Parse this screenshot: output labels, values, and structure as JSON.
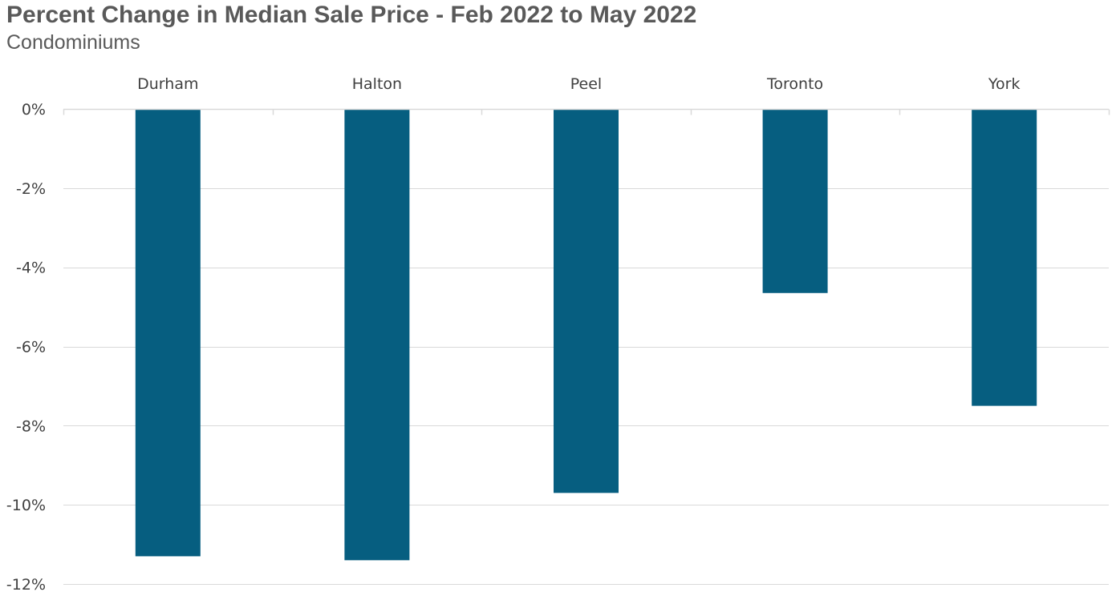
{
  "chart_data": {
    "type": "bar",
    "title": "Percent Change in Median Sale Price - Feb 2022 to May 2022",
    "subtitle": "Condominiums",
    "categories": [
      "Durham",
      "Halton",
      "Peel",
      "Toronto",
      "York"
    ],
    "values": [
      -11.3,
      -11.4,
      -9.7,
      -4.65,
      -7.5
    ],
    "ylim": [
      -12,
      0
    ],
    "yticks": [
      0,
      -2,
      -4,
      -6,
      -8,
      -10,
      -12
    ],
    "ytick_labels": [
      "0%",
      "-2%",
      "-4%",
      "-6%",
      "-8%",
      "-10%",
      "-12%"
    ],
    "xaxis_position": "top",
    "grid": true,
    "legend": "none",
    "bar_color": "#065E80",
    "grid_color": "#D9D9D9"
  }
}
